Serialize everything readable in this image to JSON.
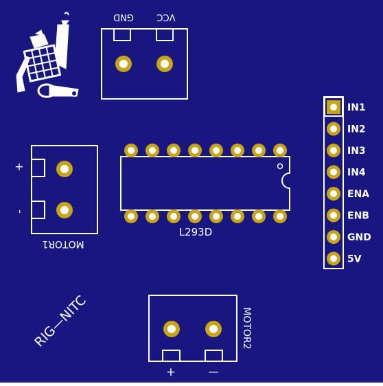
{
  "board": {
    "bg_color": "#17177f",
    "silk_color": "#ffffff",
    "pad_color": "#c8a418",
    "hole_color": "#ffffff"
  },
  "power_header": {
    "gnd_label": "GND",
    "vcc_label": "VCC"
  },
  "motor1": {
    "label": "MOTOR1",
    "plus_label": "+",
    "minus_label": "-"
  },
  "motor2": {
    "label": "MOTOR2",
    "plus_label": "+",
    "minus_label": "—"
  },
  "chip": {
    "label": "L293D",
    "pins_per_side": 8
  },
  "control_header": {
    "pins": [
      "IN1",
      "IN2",
      "IN3",
      "IN4",
      "ENA",
      "ENB",
      "GND",
      "5V"
    ]
  },
  "brand": {
    "text": "RIG—NITC",
    "logo": "robot-logo-icon"
  }
}
